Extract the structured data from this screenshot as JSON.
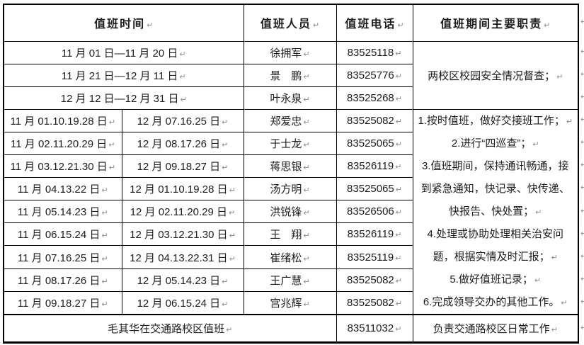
{
  "marks": {
    "cell_end": "↵"
  },
  "table": {
    "headers": {
      "time": "值班时间",
      "person": "值班人员",
      "phone": "值班电话",
      "duty": "值班期间主要职责"
    },
    "group1": {
      "rows": [
        {
          "time": "11 月 01 日—11 月 20 日",
          "name": "徐拥军",
          "phone": "83525118"
        },
        {
          "time": "11 月 21 日—12 月 11 日",
          "name": "景　鹏",
          "phone": "83525776"
        },
        {
          "time": "12 月 12 日—12 月 31 日",
          "name": "叶永泉",
          "phone": "83525268"
        }
      ],
      "duty": "两校区校园安全情况督查；"
    },
    "group2": {
      "rows": [
        {
          "t1": "11 月 01.10.19.28 日",
          "t2": "12 月 07.16.25 日",
          "name": "郑爱忠",
          "phone": "83525082"
        },
        {
          "t1": "11 月 02.11.20.29 日",
          "t2": "12 月 08.17.26 日",
          "name": "于士龙",
          "phone": "83525065"
        },
        {
          "t1": "11 月 03.12.21.30 日",
          "t2": "12 月 09.18.27 日",
          "name": "蒋思银",
          "phone": "83526119"
        },
        {
          "t1": "11 月 04.13.22 日",
          "t2": "12 月 01.10.19.28 日",
          "name": "汤方明",
          "phone": "83525065"
        },
        {
          "t1": "11 月 05.14.23 日",
          "t2": "12 月 02.11.20.29 日",
          "name": "洪锐锋",
          "phone": "83526506"
        },
        {
          "t1": "11 月 06.15.24 日",
          "t2": "12 月 03.12.21.30 日",
          "name": "王　翔",
          "phone": "83526119"
        },
        {
          "t1": "11 月 07.16.25 日",
          "t2": "12 月 04.13.22.31 日",
          "name": "崔绪松",
          "phone": "83525119"
        },
        {
          "t1": "11 月 08.17.26 日",
          "t2": "12 月 05.14.23 日",
          "name": "王广慧",
          "phone": "83525082"
        },
        {
          "t1": "11 月 09.18.27 日",
          "t2": "12 月 06.15.24 日",
          "name": "宫兆辉",
          "phone": "83525082"
        }
      ],
      "duty_lines": [
        {
          "text": "1.按时值班，做好交接班工作；",
          "para_end": true
        },
        {
          "text": "2.进行“四巡查”；",
          "para_end": true
        },
        {
          "text": "3.值班期间，保持通讯畅通，接",
          "para_end": false
        },
        {
          "text": "到紧急通知，快记录、快传递、",
          "para_end": false
        },
        {
          "text": "快报告、快处置；",
          "para_end": true
        },
        {
          "text": "4.处理或协助处理相关治安问",
          "para_end": false
        },
        {
          "text": "题，根据实情及时汇报；",
          "para_end": true
        },
        {
          "text": "5.做好值班记录；",
          "para_end": true
        },
        {
          "text": "6.完成领导交办的其他工作。",
          "para_end": true
        }
      ]
    },
    "footer": {
      "note": "毛其华在交通路校区值班",
      "phone": "83511032",
      "duty": "负责交通路校区日常工作"
    }
  }
}
